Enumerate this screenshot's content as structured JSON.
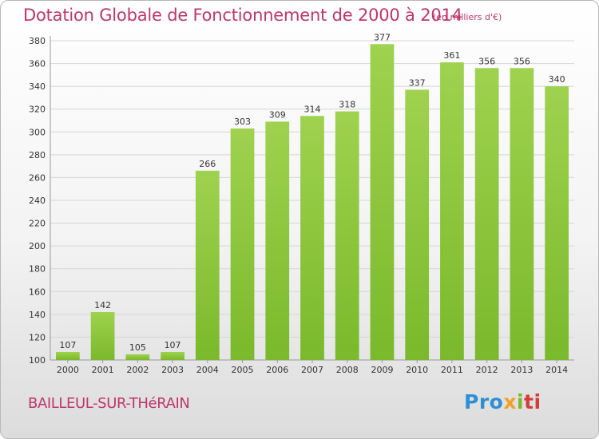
{
  "title": "Dotation Globale de Fonctionnement de 2000 à 2014",
  "unit_note": "(en milliers d'€)",
  "commune": "BAILLEUL-SUR-THéRAIN",
  "logo": {
    "p1": "Pro",
    "p2": "x",
    "p3": "i",
    "p4": "ti"
  },
  "colors": {
    "bar": "#7ab92b",
    "bar_light": "#9fd24f",
    "title": "#c0356b",
    "grid": "#d6d6d6"
  },
  "chart_data": {
    "type": "bar",
    "categories": [
      "2000",
      "2001",
      "2002",
      "2003",
      "2004",
      "2005",
      "2006",
      "2007",
      "2008",
      "2009",
      "2010",
      "2011",
      "2012",
      "2013",
      "2014"
    ],
    "values": [
      107,
      142,
      105,
      107,
      266,
      303,
      309,
      314,
      318,
      377,
      337,
      361,
      356,
      356,
      340
    ],
    "title": "Dotation Globale de Fonctionnement de 2000 à 2014",
    "xlabel": "",
    "ylabel": "",
    "ylim": [
      100,
      380
    ],
    "yticks": [
      100,
      120,
      140,
      160,
      180,
      200,
      220,
      240,
      260,
      280,
      300,
      320,
      340,
      360,
      380
    ],
    "grid": true,
    "value_labels": true
  }
}
